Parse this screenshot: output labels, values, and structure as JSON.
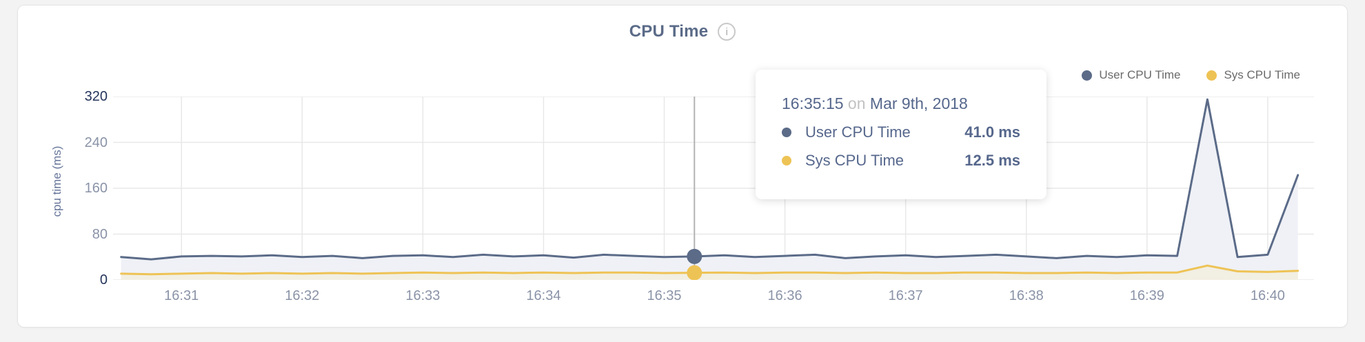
{
  "header": {
    "title": "CPU Time",
    "info_icon": "i"
  },
  "legend": [
    {
      "label": "User CPU Time",
      "color": "#5b6b88"
    },
    {
      "label": "Sys CPU Time",
      "color": "#eec355"
    }
  ],
  "axes": {
    "y_label": "cpu time (ms)",
    "y_max": 320,
    "y_ticks": [
      0,
      80,
      160,
      240,
      320
    ],
    "y_tick_color_major": "#24345a",
    "y_tick_color_minor": "#8a93a7",
    "x_ticks": [
      "16:31",
      "16:32",
      "16:33",
      "16:34",
      "16:35",
      "16:36",
      "16:37",
      "16:38",
      "16:39",
      "16:40"
    ],
    "x_domain": [
      "16:30:26",
      "16:40:23"
    ],
    "grid_color": "#e8e8e8"
  },
  "chart_data": {
    "type": "area",
    "title": "CPU Time",
    "ylabel": "cpu time (ms)",
    "ylim": [
      0,
      320
    ],
    "x_start": "16:30:30",
    "x_interval_s": 15,
    "series": [
      {
        "name": "User CPU Time",
        "color": "#5b6b88",
        "fill": "#eff1f6",
        "values": [
          40,
          36,
          41,
          42,
          41,
          43,
          40,
          42,
          38,
          42,
          43,
          40,
          44,
          41,
          43,
          39,
          44,
          42,
          40,
          41,
          43,
          40,
          42,
          44,
          38,
          41,
          43,
          40,
          42,
          44,
          41,
          38,
          42,
          40,
          43,
          42,
          315,
          40,
          44,
          183
        ]
      },
      {
        "name": "Sys CPU Time",
        "color": "#eec355",
        "fill": "#f2efe3",
        "values": [
          11,
          10,
          11,
          12,
          11,
          12,
          11,
          12,
          11,
          12,
          13,
          12,
          13,
          12,
          13,
          12,
          13,
          13,
          12,
          12.5,
          13,
          12,
          13,
          13,
          12,
          13,
          12,
          12,
          13,
          13,
          12,
          12,
          13,
          12,
          13,
          13,
          25,
          15,
          14,
          16
        ]
      }
    ],
    "highlight": {
      "time": "16:35:15",
      "crosshair_color": "#b3b3b3",
      "dot_radius": 11
    }
  },
  "tooltip": {
    "time": "16:35:15",
    "conjunction": "on",
    "date": "Mar 9th, 2018",
    "rows": [
      {
        "label": "User CPU Time",
        "value": "41.0 ms",
        "color": "#5b6b88"
      },
      {
        "label": "Sys CPU Time",
        "value": "12.5 ms",
        "color": "#eec355"
      }
    ]
  }
}
